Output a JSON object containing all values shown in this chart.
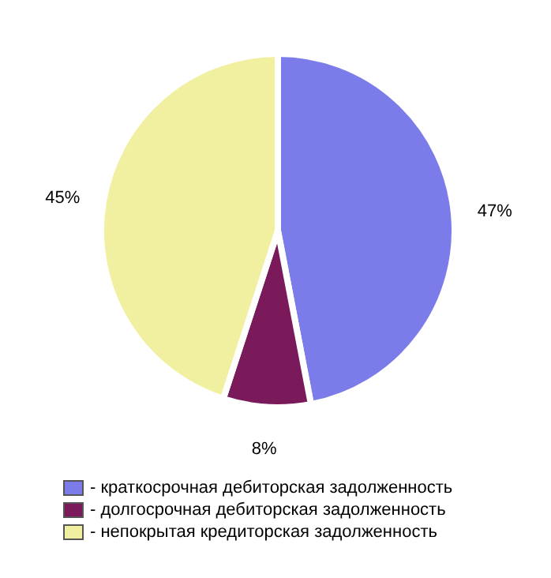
{
  "chart_data": {
    "type": "pie",
    "categories": [
      "- краткосрочная дебиторская задолженность",
      "- долгосрочная дебиторская задолженность",
      "- непокрытая кредиторская задолженность"
    ],
    "values": [
      47,
      8,
      45
    ],
    "colors": [
      "#7b7bea",
      "#7b1a5a",
      "#f0f0a0"
    ],
    "value_labels": [
      "47%",
      "8%",
      "45%"
    ],
    "legend": "bottom"
  }
}
